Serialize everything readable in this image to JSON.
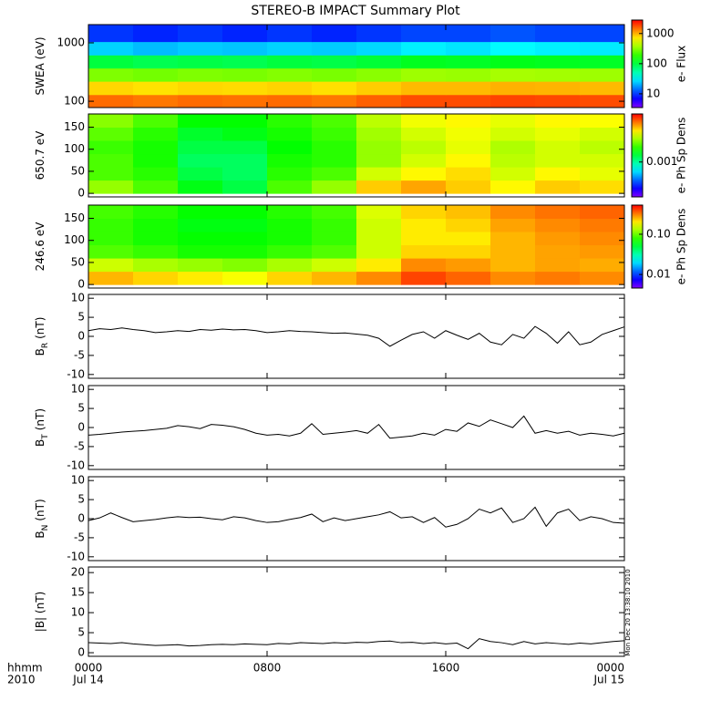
{
  "title": "STEREO-B IMPACT Summary Plot",
  "timestamp": "Mon Dec 20 13:38:10 2010",
  "x_axis": {
    "xlim": [
      0,
      24
    ],
    "xticks": [
      {
        "value": 0,
        "label": "0000"
      },
      {
        "value": 8,
        "label": "0800"
      },
      {
        "value": 16,
        "label": "1600"
      },
      {
        "value": 24,
        "label": "0000"
      }
    ],
    "date_labels": [
      "Jul 14",
      "Jul 15"
    ],
    "label": "hhmm",
    "year": "2010"
  },
  "chart_data": [
    {
      "type": "heatmap",
      "ylabel": "SWEA (eV)",
      "ylog": true,
      "ylim": [
        78,
        2050
      ],
      "yticks": [
        100,
        1000
      ],
      "x_edges": [
        0,
        2,
        4,
        6,
        8,
        10,
        12,
        14,
        16,
        18,
        20,
        22,
        24
      ],
      "y_edges": [
        78,
        130,
        220,
        370,
        620,
        1050,
        2050
      ],
      "values": [
        [
          1500,
          1400,
          1500,
          1450,
          1500,
          1400,
          1600,
          1800,
          1800,
          1900,
          1850,
          1800
        ],
        [
          800,
          750,
          800,
          780,
          820,
          760,
          850,
          950,
          950,
          1000,
          980,
          950
        ],
        [
          300,
          280,
          300,
          290,
          310,
          290,
          320,
          360,
          350,
          380,
          370,
          360
        ],
        [
          100,
          90,
          95,
          90,
          100,
          95,
          105,
          120,
          115,
          125,
          120,
          115
        ],
        [
          25,
          22,
          24,
          23,
          25,
          24,
          26,
          30,
          28,
          32,
          30,
          29
        ],
        [
          10,
          9,
          10,
          9,
          10,
          9,
          10,
          11,
          11,
          12,
          11,
          11
        ]
      ],
      "colorbar": {
        "label": "e- Flux",
        "log": true,
        "clim": [
          3.5,
          2800
        ],
        "ticks": [
          10,
          100,
          1000
        ]
      }
    },
    {
      "type": "heatmap",
      "ylabel": "650.7 eV",
      "ylog": false,
      "ylim": [
        -8,
        180
      ],
      "yticks": [
        0,
        50,
        100,
        150
      ],
      "x_edges": [
        0,
        2,
        4,
        6,
        8,
        10,
        12,
        14,
        16,
        18,
        20,
        22,
        24
      ],
      "y_edges": [
        0,
        30,
        60,
        90,
        120,
        150,
        180
      ],
      "values": [
        [
          0.0025,
          0.002,
          0.0015,
          0.0013,
          0.002,
          0.0025,
          0.004,
          0.0045,
          0.004,
          0.0035,
          0.004,
          0.0038
        ],
        [
          0.002,
          0.0018,
          0.0013,
          0.0012,
          0.0018,
          0.002,
          0.003,
          0.0035,
          0.0038,
          0.003,
          0.0035,
          0.0032
        ],
        [
          0.002,
          0.0017,
          0.0012,
          0.0012,
          0.0017,
          0.0018,
          0.0025,
          0.003,
          0.0035,
          0.0028,
          0.003,
          0.003
        ],
        [
          0.0019,
          0.0017,
          0.0013,
          0.0013,
          0.0016,
          0.0018,
          0.0025,
          0.0028,
          0.0032,
          0.0027,
          0.003,
          0.0028
        ],
        [
          0.0021,
          0.0018,
          0.0014,
          0.0015,
          0.0017,
          0.0019,
          0.0026,
          0.003,
          0.0033,
          0.003,
          0.0032,
          0.003
        ],
        [
          0.0024,
          0.002,
          0.0016,
          0.0016,
          0.0018,
          0.002,
          0.0028,
          0.0033,
          0.0035,
          0.0032,
          0.0035,
          0.0034
        ]
      ],
      "colorbar": {
        "label": "e- Ph Sp Dens",
        "log": true,
        "clim": [
          0.000234,
          0.0074
        ],
        "ticks": [
          0.001
        ]
      }
    },
    {
      "type": "heatmap",
      "ylabel": "246.6 eV",
      "ylog": false,
      "ylim": [
        -8,
        180
      ],
      "yticks": [
        0,
        50,
        100,
        150
      ],
      "x_edges": [
        0,
        2,
        4,
        6,
        8,
        10,
        12,
        14,
        16,
        18,
        20,
        22,
        24
      ],
      "y_edges": [
        0,
        30,
        60,
        90,
        120,
        150,
        180
      ],
      "values": [
        [
          0.25,
          0.22,
          0.2,
          0.18,
          0.22,
          0.25,
          0.3,
          0.4,
          0.35,
          0.3,
          0.32,
          0.3
        ],
        [
          0.15,
          0.13,
          0.12,
          0.11,
          0.13,
          0.15,
          0.2,
          0.3,
          0.28,
          0.25,
          0.27,
          0.26
        ],
        [
          0.09,
          0.08,
          0.07,
          0.07,
          0.08,
          0.09,
          0.15,
          0.22,
          0.22,
          0.25,
          0.27,
          0.28
        ],
        [
          0.08,
          0.07,
          0.065,
          0.065,
          0.07,
          0.08,
          0.15,
          0.2,
          0.2,
          0.25,
          0.28,
          0.3
        ],
        [
          0.08,
          0.07,
          0.06,
          0.06,
          0.07,
          0.08,
          0.15,
          0.2,
          0.22,
          0.27,
          0.3,
          0.32
        ],
        [
          0.085,
          0.075,
          0.065,
          0.065,
          0.075,
          0.085,
          0.16,
          0.22,
          0.24,
          0.3,
          0.33,
          0.35
        ]
      ],
      "colorbar": {
        "label": "e- Ph Sp Dens",
        "log": true,
        "clim": [
          0.0046,
          0.53
        ],
        "ticks": [
          0.01,
          {
            "value": 0.1,
            "label": "0.10"
          }
        ]
      }
    },
    {
      "type": "line",
      "ylabel": "B",
      "ylabel_sub": "R",
      "ylabel_unit": "(nT)",
      "color": "#000000",
      "ylim": [
        -11,
        11
      ],
      "yticks": [
        -10,
        -5,
        0,
        5,
        10
      ],
      "x": [
        0,
        0.5,
        1,
        1.5,
        2,
        2.5,
        3,
        3.5,
        4,
        4.5,
        5,
        5.5,
        6,
        6.5,
        7,
        7.5,
        8,
        8.5,
        9,
        9.5,
        10,
        10.5,
        11,
        11.5,
        12,
        12.5,
        13,
        13.5,
        14,
        14.5,
        15,
        15.5,
        16,
        16.5,
        17,
        17.5,
        18,
        18.5,
        19,
        19.5,
        20,
        20.5,
        21,
        21.5,
        22,
        22.5,
        23,
        23.5,
        24
      ],
      "values": [
        1.5,
        2,
        1.8,
        2.2,
        1.8,
        1.5,
        1.0,
        1.2,
        1.5,
        1.3,
        1.8,
        1.6,
        1.9,
        1.7,
        1.8,
        1.5,
        1.0,
        1.2,
        1.5,
        1.3,
        1.2,
        1.0,
        0.8,
        0.9,
        0.6,
        0.3,
        -0.5,
        -2.6,
        -1.0,
        0.5,
        1.2,
        -0.5,
        1.5,
        0.3,
        -0.8,
        0.8,
        -1.5,
        -2.2,
        0.5,
        -0.5,
        2.6,
        0.8,
        -1.8,
        1.2,
        -2.2,
        -1.5,
        0.5,
        1.5,
        2.5
      ]
    },
    {
      "type": "line",
      "ylabel": "B",
      "ylabel_sub": "T",
      "ylabel_unit": "(nT)",
      "color": "#000000",
      "ylim": [
        -11,
        11
      ],
      "yticks": [
        -10,
        -5,
        0,
        5,
        10
      ],
      "x": [
        0,
        0.5,
        1,
        1.5,
        2,
        2.5,
        3,
        3.5,
        4,
        4.5,
        5,
        5.5,
        6,
        6.5,
        7,
        7.5,
        8,
        8.5,
        9,
        9.5,
        10,
        10.5,
        11,
        11.5,
        12,
        12.5,
        13,
        13.5,
        14,
        14.5,
        15,
        15.5,
        16,
        16.5,
        17,
        17.5,
        18,
        18.5,
        19,
        19.5,
        20,
        20.5,
        21,
        21.5,
        22,
        22.5,
        23,
        23.5,
        24
      ],
      "values": [
        -2,
        -1.8,
        -1.5,
        -1.2,
        -1,
        -0.8,
        -0.5,
        -0.2,
        0.5,
        0.2,
        -0.3,
        0.8,
        0.6,
        0.2,
        -0.5,
        -1.5,
        -2,
        -1.8,
        -2.2,
        -1.5,
        1.0,
        -1.8,
        -1.5,
        -1.2,
        -0.8,
        -1.5,
        0.8,
        -2.8,
        -2.5,
        -2.2,
        -1.5,
        -2,
        -0.5,
        -1,
        1.2,
        0.3,
        2,
        1,
        0,
        3,
        -1.5,
        -0.8,
        -1.5,
        -1,
        -2,
        -1.5,
        -1.8,
        -2.2,
        -1.5
      ]
    },
    {
      "type": "line",
      "ylabel": "B",
      "ylabel_sub": "N",
      "ylabel_unit": "(nT)",
      "color": "#000000",
      "ylim": [
        -11,
        11
      ],
      "yticks": [
        -10,
        -5,
        0,
        5,
        10
      ],
      "x": [
        0,
        0.5,
        1,
        1.5,
        2,
        2.5,
        3,
        3.5,
        4,
        4.5,
        5,
        5.5,
        6,
        6.5,
        7,
        7.5,
        8,
        8.5,
        9,
        9.5,
        10,
        10.5,
        11,
        11.5,
        12,
        12.5,
        13,
        13.5,
        14,
        14.5,
        15,
        15.5,
        16,
        16.5,
        17,
        17.5,
        18,
        18.5,
        19,
        19.5,
        20,
        20.5,
        21,
        21.5,
        22,
        22.5,
        23,
        23.5,
        24
      ],
      "values": [
        -0.5,
        0.2,
        1.5,
        0.3,
        -0.8,
        -0.5,
        -0.2,
        0.2,
        0.5,
        0.3,
        0.4,
        0,
        -0.3,
        0.5,
        0.2,
        -0.5,
        -1,
        -0.8,
        -0.2,
        0.3,
        1.2,
        -0.8,
        0.2,
        -0.5,
        0,
        0.5,
        1,
        1.8,
        0.2,
        0.5,
        -1,
        0.3,
        -2.2,
        -1.5,
        0,
        2.5,
        1.5,
        2.8,
        -1,
        0,
        3,
        -2,
        1.5,
        2.5,
        -0.5,
        0.5,
        0,
        -1,
        -1.2
      ]
    },
    {
      "type": "line",
      "ylabel": "|B| (nT)",
      "color": "#000000",
      "ylim": [
        -0.9,
        21.4
      ],
      "yticks": [
        0,
        5,
        10,
        15,
        20
      ],
      "x": [
        0,
        0.5,
        1,
        1.5,
        2,
        2.5,
        3,
        3.5,
        4,
        4.5,
        5,
        5.5,
        6,
        6.5,
        7,
        7.5,
        8,
        8.5,
        9,
        9.5,
        10,
        10.5,
        11,
        11.5,
        12,
        12.5,
        13,
        13.5,
        14,
        14.5,
        15,
        15.5,
        16,
        16.5,
        17,
        17.5,
        18,
        18.5,
        19,
        19.5,
        20,
        20.5,
        21,
        21.5,
        22,
        22.5,
        23,
        23.5,
        24
      ],
      "values": [
        2.5,
        2.4,
        2.3,
        2.5,
        2.2,
        2,
        1.8,
        1.9,
        2,
        1.7,
        1.8,
        2,
        2.1,
        2,
        2.2,
        2.1,
        2,
        2.3,
        2.2,
        2.5,
        2.4,
        2.3,
        2.5,
        2.4,
        2.6,
        2.5,
        2.8,
        2.9,
        2.5,
        2.6,
        2.3,
        2.5,
        2.2,
        2.4,
        1,
        3.5,
        2.8,
        2.5,
        2,
        2.8,
        2.2,
        2.5,
        2.3,
        2.1,
        2.4,
        2.2,
        2.5,
        2.8,
        3
      ]
    }
  ]
}
